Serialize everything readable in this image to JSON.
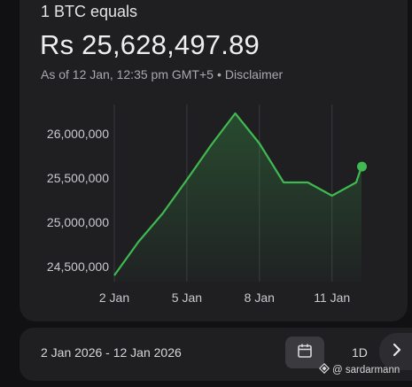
{
  "header": {
    "headline": "1 BTC equals",
    "price": "Rs 25,628,497.89",
    "as_of": "As of 12 Jan, 12:35 pm GMT+5",
    "separator": "•",
    "disclaimer": "Disclaimer"
  },
  "chart_data": {
    "type": "area",
    "x": [
      "2 Jan",
      "3 Jan",
      "4 Jan",
      "5 Jan",
      "6 Jan",
      "7 Jan",
      "8 Jan",
      "9 Jan",
      "10 Jan",
      "11 Jan",
      "12 Jan",
      "12 Jan 12:35"
    ],
    "values": [
      24400000,
      24780000,
      25100000,
      25480000,
      25870000,
      26230000,
      25890000,
      25450000,
      25450000,
      25300000,
      25450000,
      25628497.89
    ],
    "y_ticks": [
      "26,000,000",
      "25,500,000",
      "25,000,000",
      "24,500,000"
    ],
    "y_tick_values": [
      26000000,
      25500000,
      25000000,
      24500000
    ],
    "x_ticks": [
      "2 Jan",
      "5 Jan",
      "8 Jan",
      "11 Jan"
    ],
    "ylim": [
      24300000,
      26300000
    ],
    "grid": "vertical",
    "line_color": "#3fb950",
    "title": "",
    "xlabel": "",
    "ylabel": ""
  },
  "footer": {
    "date_range": "2 Jan 2026 - 12 Jan 2026",
    "period": "1D",
    "calendar_icon": "calendar-icon",
    "next_icon": "chevron-right-icon"
  },
  "watermark": {
    "text": "@ sardarmann"
  }
}
